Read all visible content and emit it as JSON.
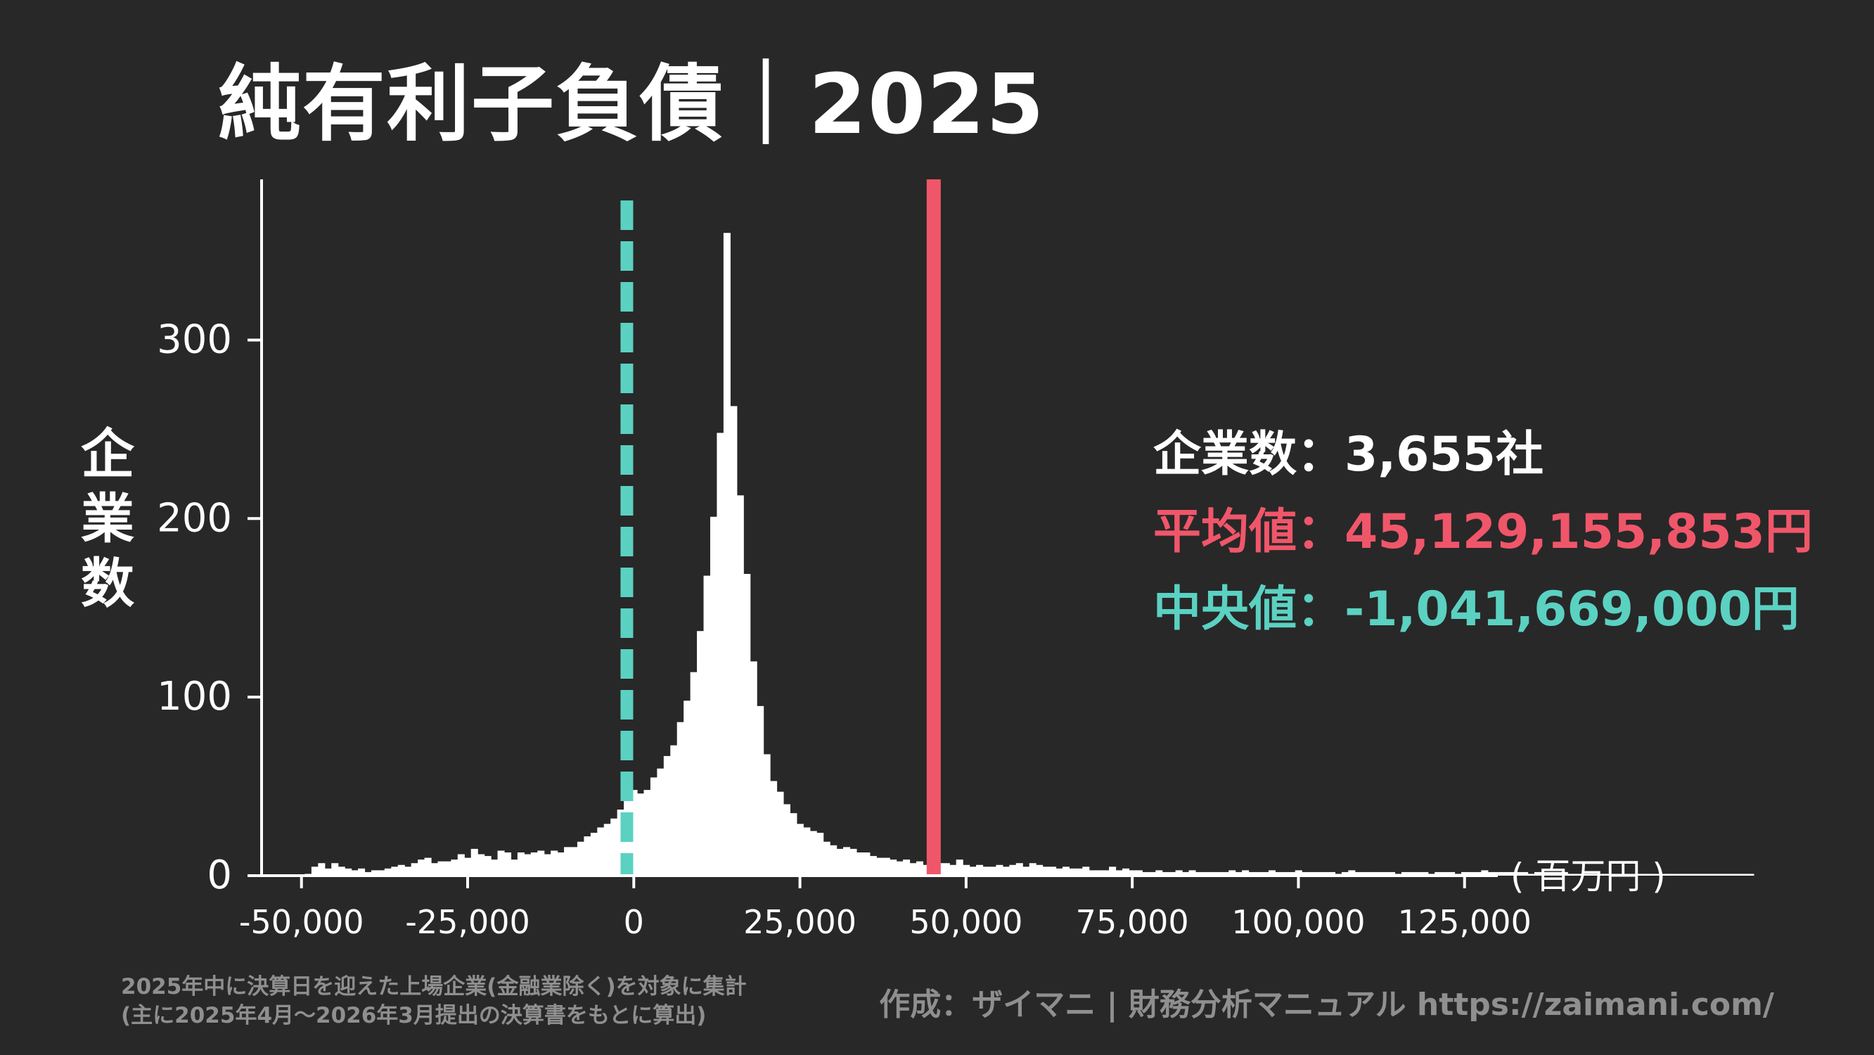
{
  "title": "純有利子負債｜2025",
  "ylabel_chars": [
    "企",
    "業",
    "数"
  ],
  "stats": {
    "count": {
      "label": "企業数",
      "sep": "：",
      "value": "3,655社",
      "color": "#ffffff"
    },
    "mean": {
      "label": "平均値",
      "sep": "：",
      "value": "45,129,155,853円",
      "color": "#f0566a"
    },
    "median": {
      "label": "中央値",
      "sep": "：",
      "value": "-1,041,669,000円",
      "color": "#5bd1c2"
    }
  },
  "footnote": {
    "line1": "2025年中に決算日を迎えた上場企業(金融業除く)を対象に集計",
    "line2": "(主に2025年4月～2026年3月提出の決算書をもとに算出)"
  },
  "credit": "作成：ザイマニ | 財務分析マニュアル https://zaimani.com/",
  "chart_data": {
    "type": "bar",
    "subtype": "histogram",
    "xlabel": "( 百万円 )",
    "ylabel": "企業数",
    "xlim": [
      -56000,
      130000
    ],
    "ylim": [
      0,
      390
    ],
    "x_ticks": [
      -50000,
      -25000,
      0,
      25000,
      50000,
      75000,
      100000,
      125000
    ],
    "x_tick_labels": [
      "-50,000",
      "-25,000",
      "0",
      "25,000",
      "50,000",
      "75,000",
      "100,000",
      "125,000"
    ],
    "y_ticks": [
      0,
      100,
      200,
      300
    ],
    "y_tick_labels": [
      "0",
      "100",
      "200",
      "300"
    ],
    "bin_start": -49500,
    "bin_width": 1000,
    "counts": [
      1,
      5,
      7,
      4,
      7,
      5,
      4,
      3,
      4,
      2,
      3,
      3,
      4,
      5,
      6,
      5,
      7,
      9,
      10,
      7,
      8,
      8,
      9,
      12,
      10,
      15,
      12,
      11,
      9,
      14,
      13,
      9,
      13,
      12,
      13,
      14,
      12,
      14,
      13,
      16,
      16,
      19,
      22,
      24,
      27,
      29,
      32,
      37,
      45,
      48,
      46,
      48,
      55,
      60,
      67,
      73,
      86,
      98,
      114,
      137,
      168,
      201,
      248,
      360,
      263,
      213,
      169,
      120,
      95,
      68,
      53,
      47,
      40,
      35,
      29,
      27,
      25,
      24,
      19,
      17,
      15,
      16,
      15,
      13,
      13,
      11,
      10,
      10,
      9,
      8,
      9,
      7,
      8,
      6,
      8,
      7,
      7,
      6,
      9,
      6,
      5,
      6,
      5,
      5,
      6,
      5,
      6,
      7,
      5,
      7,
      6,
      5,
      5,
      4,
      5,
      4,
      4,
      5,
      3,
      3,
      3,
      5,
      3,
      4,
      3,
      3,
      2,
      2,
      3,
      2,
      2,
      3,
      2,
      3,
      2,
      2,
      2,
      2,
      2,
      3,
      2,
      3,
      2,
      2,
      2,
      3,
      2,
      2,
      2,
      3,
      2,
      2,
      2,
      2,
      2,
      1,
      2,
      3,
      2,
      2,
      2,
      2,
      2,
      2,
      1,
      2,
      2,
      2,
      2,
      1,
      2,
      2,
      2,
      1,
      2,
      2,
      2,
      3,
      2,
      2,
      2,
      2,
      2,
      2,
      1,
      2,
      2,
      2,
      2,
      2,
      1,
      1,
      1,
      1,
      1,
      1,
      1,
      1,
      1,
      1,
      1,
      1,
      1,
      1,
      1,
      1,
      1,
      1,
      1,
      1,
      1,
      1,
      1,
      1,
      1,
      1,
      1,
      1
    ],
    "bar_color": "#ffffff",
    "mean_value": 45129.155853,
    "mean_color": "#f0566a",
    "median_value": -1041.669,
    "median_color": "#5bd1c2"
  }
}
